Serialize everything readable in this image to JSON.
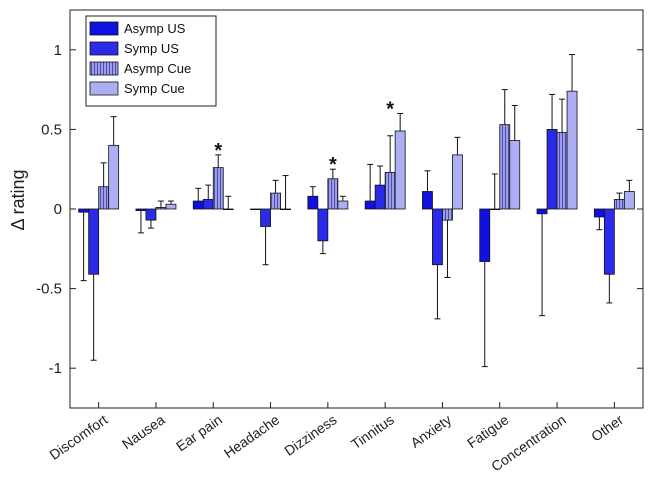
{
  "chart_data": {
    "type": "bar",
    "xlabel": "",
    "ylabel": "Δ rating",
    "ylim": [
      -1.25,
      1.25
    ],
    "yticks": [
      -1,
      -0.5,
      0,
      0.5,
      1
    ],
    "ytick_labels": [
      "-1",
      "-0.5",
      "0",
      "0.5",
      "1"
    ],
    "grid": false,
    "legend_position": "top-left",
    "categories": [
      "Discomfort",
      "Nausea",
      "Ear pain",
      "Headache",
      "Dizziness",
      "Tinnitus",
      "Anxiety",
      "Fatigue",
      "Concentration",
      "Other"
    ],
    "series": [
      {
        "name": "Asymp US",
        "color": "#1010e0",
        "hatch": false,
        "values": [
          -0.02,
          -0.01,
          0.05,
          0.0,
          0.08,
          0.05,
          0.11,
          -0.33,
          -0.03,
          -0.05
        ],
        "errors": [
          0.43,
          0.14,
          0.08,
          0.0,
          0.06,
          0.23,
          0.13,
          0.66,
          0.64,
          0.08
        ]
      },
      {
        "name": "Symp US",
        "color": "#2a2ae8",
        "hatch": false,
        "values": [
          -0.41,
          -0.07,
          0.06,
          -0.11,
          -0.2,
          0.15,
          -0.35,
          0.0,
          0.5,
          -0.41
        ],
        "errors": [
          0.54,
          0.05,
          0.09,
          0.24,
          0.08,
          0.12,
          0.34,
          0.22,
          0.22,
          0.18
        ]
      },
      {
        "name": "Asymp Cue",
        "color": "#9c9cf0",
        "hatch": true,
        "values": [
          0.14,
          0.01,
          0.26,
          0.1,
          0.19,
          0.23,
          -0.07,
          0.53,
          0.48,
          0.06
        ],
        "errors": [
          0.15,
          0.04,
          0.08,
          0.08,
          0.06,
          0.23,
          0.36,
          0.22,
          0.21,
          0.04
        ]
      },
      {
        "name": "Symp Cue",
        "color": "#aeaef5",
        "hatch": false,
        "values": [
          0.4,
          0.03,
          0.0,
          0.0,
          0.05,
          0.49,
          0.34,
          0.43,
          0.74,
          0.11
        ],
        "errors": [
          0.18,
          0.02,
          0.08,
          0.21,
          0.03,
          0.11,
          0.11,
          0.22,
          0.23,
          0.07
        ]
      }
    ],
    "annotations": [
      {
        "category": "Ear pain",
        "text": "*"
      },
      {
        "category": "Dizziness",
        "text": "*"
      },
      {
        "category": "Tinnitus",
        "text": "*"
      }
    ]
  }
}
